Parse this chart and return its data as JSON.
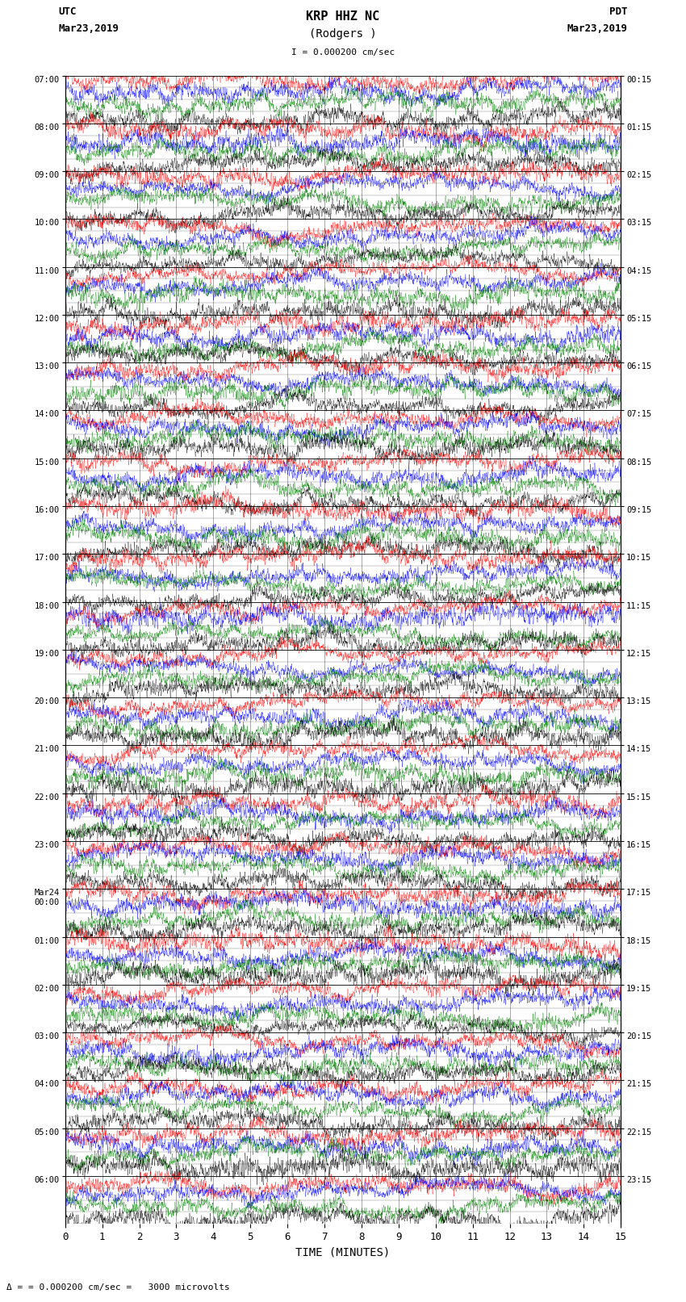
{
  "title_line1": "KRP HHZ NC",
  "title_line2": "(Rodgers )",
  "scale_text": "I = 0.000200 cm/sec",
  "left_label": "UTC",
  "left_date": "Mar23,2019",
  "right_label": "PDT",
  "right_date": "Mar23,2019",
  "xlabel": "TIME (MINUTES)",
  "footer_text": "= 0.000200 cm/sec =   3000 microvolts",
  "left_times": [
    "07:00",
    "08:00",
    "09:00",
    "10:00",
    "11:00",
    "12:00",
    "13:00",
    "14:00",
    "15:00",
    "16:00",
    "17:00",
    "18:00",
    "19:00",
    "20:00",
    "21:00",
    "22:00",
    "23:00",
    "Mar24\n00:00",
    "01:00",
    "02:00",
    "03:00",
    "04:00",
    "05:00",
    "06:00"
  ],
  "right_times": [
    "00:15",
    "01:15",
    "02:15",
    "03:15",
    "04:15",
    "05:15",
    "06:15",
    "07:15",
    "08:15",
    "09:15",
    "10:15",
    "11:15",
    "12:15",
    "13:15",
    "14:15",
    "15:15",
    "16:15",
    "17:15",
    "18:15",
    "19:15",
    "20:15",
    "21:15",
    "22:15",
    "23:15"
  ],
  "xticks": [
    0,
    1,
    2,
    3,
    4,
    5,
    6,
    7,
    8,
    9,
    10,
    11,
    12,
    13,
    14,
    15
  ],
  "num_rows": 24,
  "sub_traces_per_row": 4,
  "minutes_per_row": 15,
  "background_color": "#ffffff",
  "trace_colors": [
    "#ff0000",
    "#0000ff",
    "#008000",
    "#000000"
  ],
  "amplitude": 0.1,
  "fig_width": 8.5,
  "fig_height": 16.13
}
